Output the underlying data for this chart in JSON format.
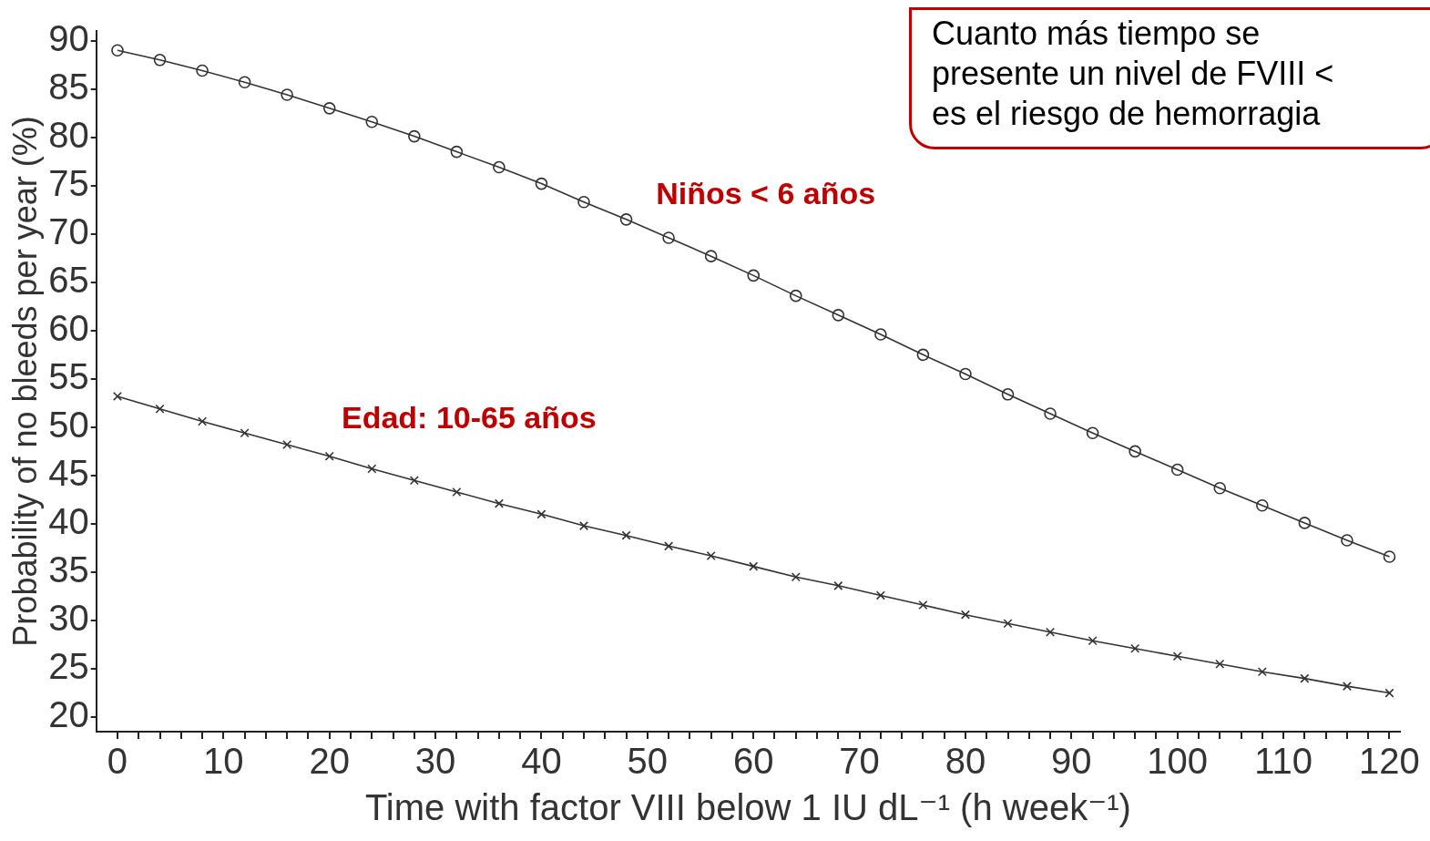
{
  "chart_data": {
    "type": "line",
    "xlabel": "Time with factor VIII below 1 IU dL⁻¹ (h week⁻¹)",
    "ylabel": "Probability of no bleeds per year (%)",
    "x": [
      0,
      4,
      8,
      12,
      16,
      20,
      24,
      28,
      32,
      36,
      40,
      44,
      48,
      52,
      56,
      60,
      64,
      68,
      72,
      76,
      80,
      84,
      88,
      92,
      96,
      100,
      104,
      108,
      112,
      116,
      120
    ],
    "series": [
      {
        "name": "Niños < 6 años",
        "color": "#333333",
        "marker": "circle",
        "values": [
          89.0,
          88.0,
          86.9,
          85.7,
          84.4,
          83.0,
          81.6,
          80.1,
          78.5,
          76.9,
          75.2,
          73.3,
          71.5,
          69.6,
          67.7,
          65.7,
          63.6,
          61.6,
          59.6,
          57.5,
          55.5,
          53.4,
          51.4,
          49.4,
          47.5,
          45.6,
          43.7,
          41.9,
          40.1,
          38.3,
          36.6
        ]
      },
      {
        "name": "Edad: 10-65 años",
        "color": "#333333",
        "marker": "cross",
        "values": [
          53.2,
          51.9,
          50.6,
          49.4,
          48.2,
          47.0,
          45.7,
          44.5,
          43.3,
          42.1,
          41.0,
          39.8,
          38.8,
          37.7,
          36.7,
          35.6,
          34.5,
          33.6,
          32.6,
          31.6,
          30.6,
          29.7,
          28.8,
          27.9,
          27.1,
          26.3,
          25.5,
          24.7,
          24.0,
          23.2,
          22.5
        ]
      }
    ],
    "xlim": [
      -2,
      121
    ],
    "xticks": [
      0,
      {
        "value": 2,
        "label": null
      },
      {
        "value": 4,
        "label": null
      },
      {
        "value": 6,
        "label": null
      },
      {
        "value": 8,
        "label": null
      },
      10,
      {
        "value": 12,
        "label": null
      },
      {
        "value": 14,
        "label": null
      },
      {
        "value": 16,
        "label": null
      },
      {
        "value": 18,
        "label": null
      },
      20,
      {
        "value": 22,
        "label": null
      },
      {
        "value": 24,
        "label": null
      },
      {
        "value": 26,
        "label": null
      },
      {
        "value": 28,
        "label": null
      },
      30,
      {
        "value": 32,
        "label": null
      },
      {
        "value": 34,
        "label": null
      },
      {
        "value": 36,
        "label": null
      },
      {
        "value": 38,
        "label": null
      },
      40,
      {
        "value": 42,
        "label": null
      },
      {
        "value": 44,
        "label": null
      },
      {
        "value": 46,
        "label": null
      },
      {
        "value": 48,
        "label": null
      },
      50,
      {
        "value": 52,
        "label": null
      },
      {
        "value": 54,
        "label": null
      },
      {
        "value": 56,
        "label": null
      },
      {
        "value": 58,
        "label": null
      },
      60,
      {
        "value": 62,
        "label": null
      },
      {
        "value": 64,
        "label": null
      },
      {
        "value": 66,
        "label": null
      },
      {
        "value": 68,
        "label": null
      },
      70,
      {
        "value": 72,
        "label": null
      },
      {
        "value": 74,
        "label": null
      },
      {
        "value": 76,
        "label": null
      },
      {
        "value": 78,
        "label": null
      },
      80,
      {
        "value": 82,
        "label": null
      },
      {
        "value": 84,
        "label": null
      },
      {
        "value": 86,
        "label": null
      },
      {
        "value": 88,
        "label": null
      },
      90,
      {
        "value": 92,
        "label": null
      },
      {
        "value": 94,
        "label": null
      },
      {
        "value": 96,
        "label": null
      },
      {
        "value": 98,
        "label": null
      },
      100,
      {
        "value": 102,
        "label": null
      },
      {
        "value": 104,
        "label": null
      },
      {
        "value": 106,
        "label": null
      },
      {
        "value": 108,
        "label": null
      },
      110,
      {
        "value": 112,
        "label": null
      },
      {
        "value": 114,
        "label": null
      },
      {
        "value": 116,
        "label": null
      },
      {
        "value": 118,
        "label": null
      },
      120
    ],
    "ylim": [
      18.5,
      91
    ],
    "yticks": [
      20,
      25,
      30,
      35,
      40,
      45,
      50,
      55,
      60,
      65,
      70,
      75,
      80,
      85,
      90
    ],
    "grid": false,
    "legend": false,
    "line_style": "solid",
    "annotations": [
      "Cuanto más tiempo se",
      "presente un nivel de FVIII <",
      "es el riesgo de hemorragia"
    ]
  }
}
